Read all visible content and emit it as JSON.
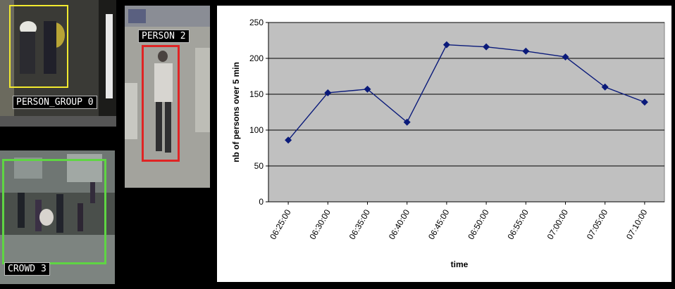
{
  "video_panels": [
    {
      "label": "PERSON_GROUP 0",
      "box_color": "#f2ea2f"
    },
    {
      "label": "CROWD 3",
      "box_color": "#5fd543"
    },
    {
      "label": "PERSON 2",
      "box_color": "#e02424"
    }
  ],
  "chart_data": {
    "type": "line",
    "title": "",
    "xlabel": "time",
    "ylabel": "nb of persons over 5 min",
    "categories": [
      "06:25:00",
      "06:30:00",
      "06:35:00",
      "06:40:00",
      "06:45:00",
      "06:50:00",
      "06:55:00",
      "07:00:00",
      "07:05:00",
      "07:10:00"
    ],
    "series": [
      {
        "values": [
          86,
          152,
          157,
          111,
          219,
          216,
          210,
          202,
          160,
          139
        ],
        "color": "#0a1a7a"
      }
    ],
    "ylim": [
      0,
      250
    ],
    "yticks": [
      0,
      50,
      100,
      150,
      200,
      250
    ],
    "grid": true,
    "plot_background": "#c0c0c0",
    "legend": "none"
  }
}
